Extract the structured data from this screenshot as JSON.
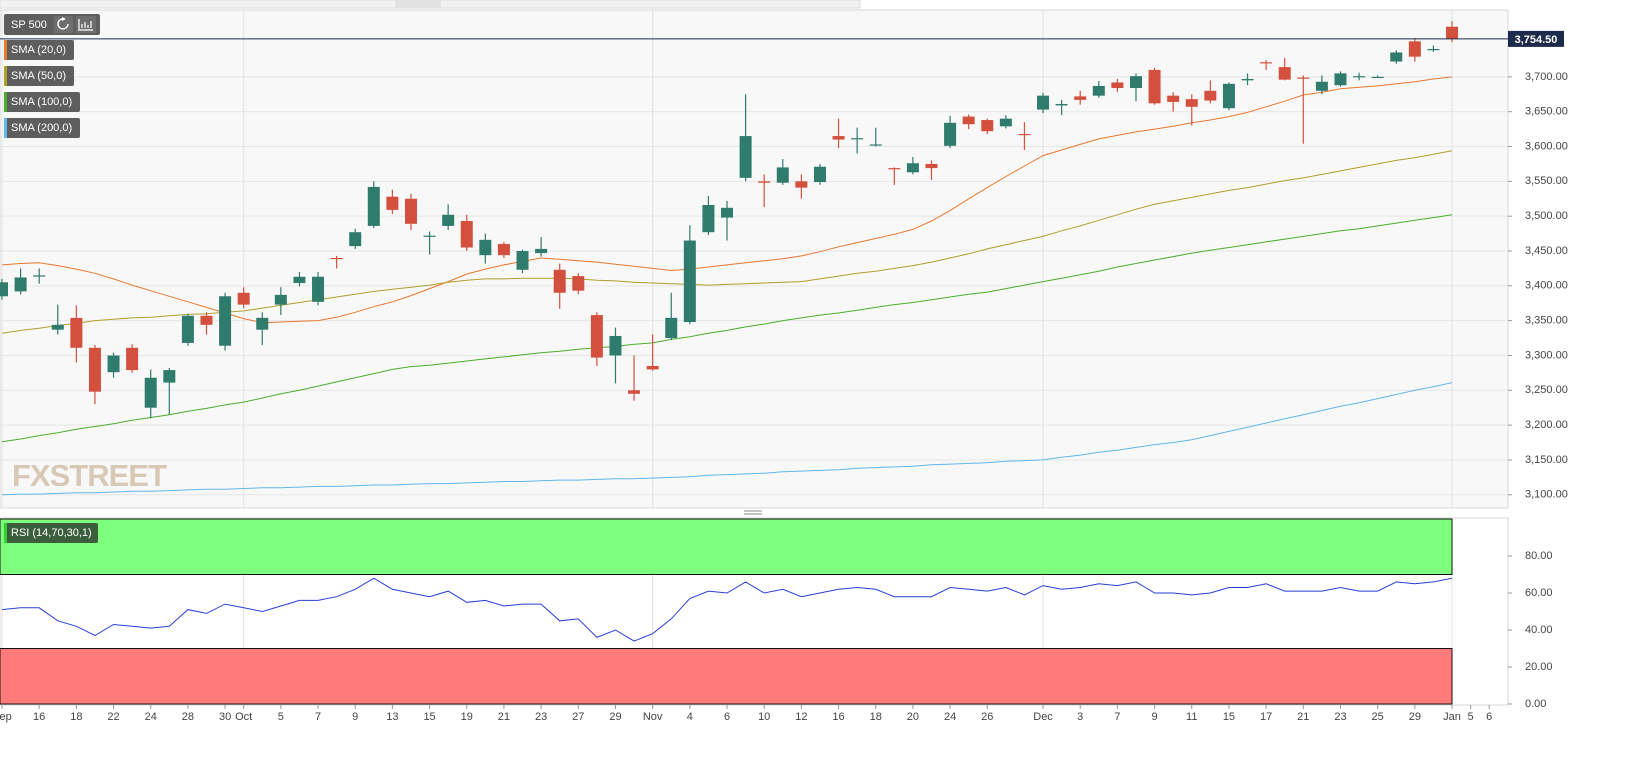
{
  "chart_data": [
    {
      "type": "candlestick",
      "title": "SP 500",
      "watermark": "FXSTREET",
      "last_label": "3,754.50",
      "up_color": "#2f7b6c",
      "down_color": "#d4503e",
      "last_color": "#1c2b4b",
      "grid": true,
      "categories": [
        "Sep",
        null,
        "16",
        null,
        "18",
        null,
        "22",
        null,
        "24",
        null,
        "28",
        null,
        "30",
        "Oct",
        null,
        "5",
        null,
        "7",
        null,
        "9",
        null,
        "13",
        null,
        "15",
        null,
        "19",
        null,
        "21",
        null,
        "23",
        null,
        "27",
        null,
        "29",
        null,
        "Nov",
        null,
        "4",
        null,
        "6",
        null,
        "10",
        null,
        "12",
        null,
        "16",
        null,
        "18",
        null,
        "20",
        null,
        "24",
        null,
        "26",
        null,
        null,
        "Dec",
        null,
        "3",
        null,
        "7",
        null,
        "9",
        null,
        "11",
        null,
        "15",
        null,
        "17",
        null,
        "21",
        null,
        "23",
        null,
        "25",
        null,
        "29",
        null,
        "Jan",
        "5",
        "6"
      ],
      "open": [
        3385,
        3392,
        3414,
        3337,
        3354,
        3311,
        3276,
        3311,
        3225,
        3261,
        3318,
        3357,
        3314,
        3390,
        3337,
        3373,
        3404,
        3377,
        3440,
        3457,
        3486,
        3528,
        3525,
        3471,
        3486,
        3493,
        3444,
        3460,
        3423,
        3447,
        3423,
        3414,
        3358,
        3300,
        3250,
        3285,
        3325,
        3348,
        3477,
        3498,
        3555,
        3550,
        3548,
        3550,
        3549,
        3615,
        3611,
        3602,
        3569,
        3563,
        3575,
        3601,
        3643,
        3638,
        3629,
        3618,
        3653,
        3659,
        3672,
        3673,
        3692,
        3684,
        3710,
        3673,
        3668,
        3680,
        3655,
        3695,
        3721,
        3714,
        3699,
        3680,
        3688,
        3700,
        3700,
        3722,
        3751,
        3739,
        3772,
        null,
        null
      ],
      "high": [
        3410,
        3425,
        3425,
        3373,
        3372,
        3315,
        3304,
        3316,
        3280,
        3282,
        3360,
        3362,
        3390,
        3398,
        3362,
        3398,
        3420,
        3420,
        3443,
        3482,
        3550,
        3538,
        3532,
        3478,
        3517,
        3502,
        3475,
        3463,
        3452,
        3470,
        3432,
        3418,
        3362,
        3340,
        3300,
        3330,
        3390,
        3487,
        3529,
        3522,
        3675,
        3560,
        3582,
        3560,
        3575,
        3640,
        3627,
        3627,
        3570,
        3585,
        3580,
        3644,
        3646,
        3640,
        3645,
        3635,
        3677,
        3667,
        3680,
        3694,
        3697,
        3705,
        3713,
        3678,
        3675,
        3695,
        3692,
        3705,
        3724,
        3727,
        3702,
        3702,
        3708,
        3706,
        3702,
        3738,
        3756,
        3745,
        3780,
        null,
        null
      ],
      "low": [
        3380,
        3388,
        3403,
        3330,
        3290,
        3230,
        3268,
        3275,
        3210,
        3215,
        3314,
        3330,
        3307,
        3368,
        3315,
        3358,
        3399,
        3372,
        3425,
        3453,
        3483,
        3503,
        3480,
        3445,
        3480,
        3450,
        3432,
        3440,
        3418,
        3442,
        3367,
        3388,
        3285,
        3260,
        3235,
        3278,
        3322,
        3345,
        3473,
        3465,
        3550,
        3513,
        3545,
        3525,
        3545,
        3598,
        3590,
        3600,
        3545,
        3560,
        3552,
        3598,
        3625,
        3618,
        3626,
        3595,
        3648,
        3645,
        3660,
        3670,
        3678,
        3665,
        3660,
        3650,
        3630,
        3662,
        3652,
        3688,
        3710,
        3695,
        3604,
        3675,
        3686,
        3695,
        3699,
        3719,
        3722,
        3736,
        3750,
        null,
        null
      ],
      "close": [
        3405,
        3412,
        3415,
        3344,
        3311,
        3248,
        3300,
        3279,
        3268,
        3279,
        3357,
        3344,
        3385,
        3373,
        3354,
        3387,
        3413,
        3413,
        3439,
        3477,
        3542,
        3509,
        3489,
        3472,
        3502,
        3455,
        3466,
        3444,
        3450,
        3453,
        3390,
        3393,
        3297,
        3328,
        3245,
        3280,
        3354,
        3465,
        3516,
        3512,
        3615,
        3548,
        3570,
        3541,
        3571,
        3610,
        3612,
        3603,
        3568,
        3576,
        3569,
        3634,
        3632,
        3622,
        3640,
        3617,
        3673,
        3661,
        3667,
        3687,
        3684,
        3701,
        3662,
        3664,
        3657,
        3666,
        3690,
        3697,
        3720,
        3696,
        3698,
        3693,
        3705,
        3701,
        3700,
        3735,
        3729,
        3740,
        3754.5,
        null,
        null
      ],
      "series": [
        {
          "name": "SMA (20,0)",
          "color": "#e8782d",
          "values": [
            3430,
            3432,
            3433,
            3429,
            3424,
            3418,
            3410,
            3401,
            3393,
            3385,
            3377,
            3369,
            3361,
            3353,
            3347,
            3348,
            3349,
            3350,
            3355,
            3362,
            3370,
            3377,
            3386,
            3396,
            3406,
            3417,
            3424,
            3430,
            3435,
            3440,
            3438,
            3436,
            3434,
            3431,
            3428,
            3425,
            3422,
            3424,
            3427,
            3430,
            3433,
            3436,
            3439,
            3443,
            3449,
            3456,
            3462,
            3468,
            3474,
            3481,
            3493,
            3508,
            3525,
            3541,
            3557,
            3572,
            3587,
            3595,
            3603,
            3611,
            3616,
            3621,
            3625,
            3629,
            3634,
            3638,
            3643,
            3649,
            3657,
            3665,
            3674,
            3678,
            3683,
            3685,
            3687,
            3690,
            3693,
            3697,
            3700,
            null,
            null
          ]
        },
        {
          "name": "SMA (50,0)",
          "color": "#b09f2c",
          "values": [
            3332,
            3336,
            3339,
            3343,
            3346,
            3350,
            3352,
            3354,
            3355,
            3357,
            3359,
            3360,
            3362,
            3364,
            3368,
            3372,
            3376,
            3380,
            3384,
            3388,
            3392,
            3395,
            3398,
            3401,
            3405,
            3408,
            3410,
            3410,
            3411,
            3411,
            3411,
            3410,
            3408,
            3407,
            3405,
            3404,
            3403,
            3402,
            3401,
            3402,
            3403,
            3404,
            3405,
            3406,
            3410,
            3414,
            3418,
            3421,
            3425,
            3429,
            3434,
            3440,
            3446,
            3453,
            3459,
            3465,
            3471,
            3479,
            3486,
            3494,
            3502,
            3510,
            3517,
            3522,
            3527,
            3532,
            3537,
            3541,
            3546,
            3551,
            3555,
            3560,
            3565,
            3570,
            3575,
            3580,
            3584,
            3589,
            3594,
            null,
            null
          ]
        },
        {
          "name": "SMA (100,0)",
          "color": "#4aae2c",
          "values": [
            3176,
            3180,
            3185,
            3189,
            3194,
            3198,
            3202,
            3207,
            3211,
            3215,
            3220,
            3224,
            3229,
            3233,
            3239,
            3245,
            3250,
            3256,
            3262,
            3268,
            3274,
            3280,
            3284,
            3286,
            3289,
            3292,
            3295,
            3298,
            3301,
            3304,
            3306,
            3309,
            3311,
            3313,
            3316,
            3318,
            3323,
            3327,
            3332,
            3336,
            3341,
            3345,
            3350,
            3354,
            3358,
            3361,
            3365,
            3369,
            3373,
            3376,
            3380,
            3384,
            3388,
            3391,
            3396,
            3401,
            3406,
            3411,
            3416,
            3421,
            3427,
            3432,
            3437,
            3442,
            3447,
            3451,
            3455,
            3459,
            3463,
            3467,
            3471,
            3475,
            3479,
            3482,
            3486,
            3490,
            3494,
            3498,
            3502,
            null,
            null
          ]
        },
        {
          "name": "SMA (200,0)",
          "color": "#62b6ea",
          "values": [
            3100,
            3101,
            3101,
            3102,
            3103,
            3103,
            3104,
            3105,
            3105,
            3106,
            3107,
            3108,
            3108,
            3109,
            3110,
            3110,
            3111,
            3112,
            3112,
            3113,
            3114,
            3114,
            3115,
            3116,
            3116,
            3117,
            3118,
            3119,
            3119,
            3120,
            3121,
            3121,
            3122,
            3123,
            3123,
            3124,
            3125,
            3126,
            3128,
            3129,
            3130,
            3131,
            3133,
            3134,
            3135,
            3136,
            3138,
            3139,
            3140,
            3141,
            3143,
            3144,
            3145,
            3146,
            3148,
            3149,
            3150,
            3154,
            3157,
            3161,
            3164,
            3168,
            3172,
            3175,
            3179,
            3185,
            3191,
            3197,
            3203,
            3209,
            3215,
            3221,
            3227,
            3232,
            3238,
            3244,
            3250,
            3255,
            3261,
            null,
            null
          ]
        }
      ],
      "ylim": [
        3081,
        3796
      ],
      "yticks": [
        {
          "value": 3100,
          "label": "3,100.00"
        },
        {
          "value": 3150,
          "label": "3,150.00"
        },
        {
          "value": 3200,
          "label": "3,200.00"
        },
        {
          "value": 3250,
          "label": "3,250.00"
        },
        {
          "value": 3300,
          "label": "3,300.00"
        },
        {
          "value": 3350,
          "label": "3,350.00"
        },
        {
          "value": 3400,
          "label": "3,400.00"
        },
        {
          "value": 3450,
          "label": "3,450.00"
        },
        {
          "value": 3500,
          "label": "3,500.00"
        },
        {
          "value": 3550,
          "label": "3,550.00"
        },
        {
          "value": 3600,
          "label": "3,600.00"
        },
        {
          "value": 3650,
          "label": "3,650.00"
        },
        {
          "value": 3700,
          "label": "3,700.00"
        }
      ]
    },
    {
      "type": "line",
      "series": [
        {
          "name": "RSI (14,70,30,1)",
          "color": "#2a3ed8",
          "values": [
            51,
            52,
            52,
            45,
            42,
            37,
            43,
            42,
            41,
            42,
            51,
            49,
            54,
            52,
            50,
            53,
            56,
            56,
            58,
            62,
            68,
            62,
            60,
            58,
            61,
            55,
            56,
            53,
            54,
            54,
            45,
            46,
            36,
            40,
            34,
            38,
            46,
            57,
            61,
            60,
            66,
            60,
            62,
            58,
            60,
            62,
            63,
            62,
            58,
            58,
            58,
            63,
            62,
            61,
            63,
            59,
            64,
            62,
            63,
            65,
            64,
            66,
            60,
            60,
            59,
            60,
            63,
            63,
            65,
            61,
            61,
            61,
            63,
            61,
            61,
            66,
            65,
            66,
            68,
            null,
            null
          ]
        }
      ],
      "overbought": 70,
      "oversold": 30,
      "overbought_color": "#7dff7d",
      "oversold_color": "#ff7b7b",
      "ylim": [
        0,
        100
      ],
      "yticks": [
        {
          "value": 0,
          "label": "0.00"
        },
        {
          "value": 20,
          "label": "20.00"
        },
        {
          "value": 40,
          "label": "40.00"
        },
        {
          "value": 60,
          "label": "60.00"
        },
        {
          "value": 80,
          "label": "80.00"
        }
      ]
    }
  ]
}
